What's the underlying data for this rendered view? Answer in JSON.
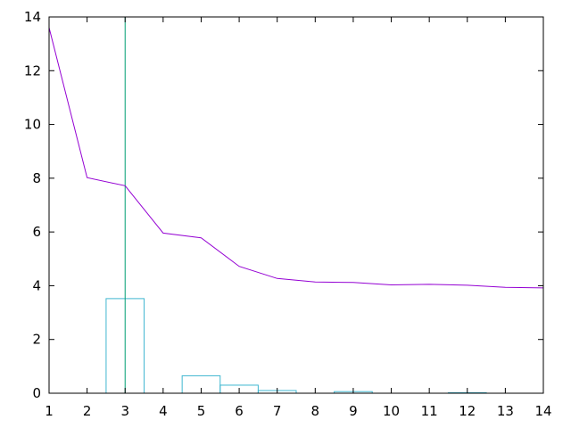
{
  "chart_data": {
    "type": "line",
    "title": "",
    "xlabel": "",
    "ylabel": "",
    "xlim": [
      1,
      14
    ],
    "ylim": [
      0,
      14
    ],
    "x_ticks": [
      "1",
      "2",
      "3",
      "4",
      "5",
      "6",
      "7",
      "8",
      "9",
      "10",
      "11",
      "12",
      "13",
      "14"
    ],
    "y_ticks": [
      "0",
      "2",
      "4",
      "6",
      "8",
      "10",
      "12",
      "14"
    ],
    "grid": false,
    "legend": "none",
    "series": [
      {
        "kind": "line",
        "color": "#9400d3",
        "x": [
          1,
          2,
          3,
          4,
          5,
          6,
          7,
          8,
          9,
          10,
          11,
          12,
          13,
          14
        ],
        "y": [
          13.6,
          8.02,
          7.72,
          5.96,
          5.78,
          4.72,
          4.27,
          4.14,
          4.12,
          4.03,
          4.05,
          4.02,
          3.94,
          3.92
        ]
      },
      {
        "kind": "bar",
        "color": "#3fb6d0",
        "bar_width": 1,
        "x": [
          3,
          5,
          6,
          7,
          9,
          12
        ],
        "y": [
          3.52,
          0.65,
          0.3,
          0.1,
          0.06,
          0.02
        ]
      }
    ],
    "vertical_lines": [
      {
        "x": 3,
        "color": "#009e73"
      }
    ]
  }
}
